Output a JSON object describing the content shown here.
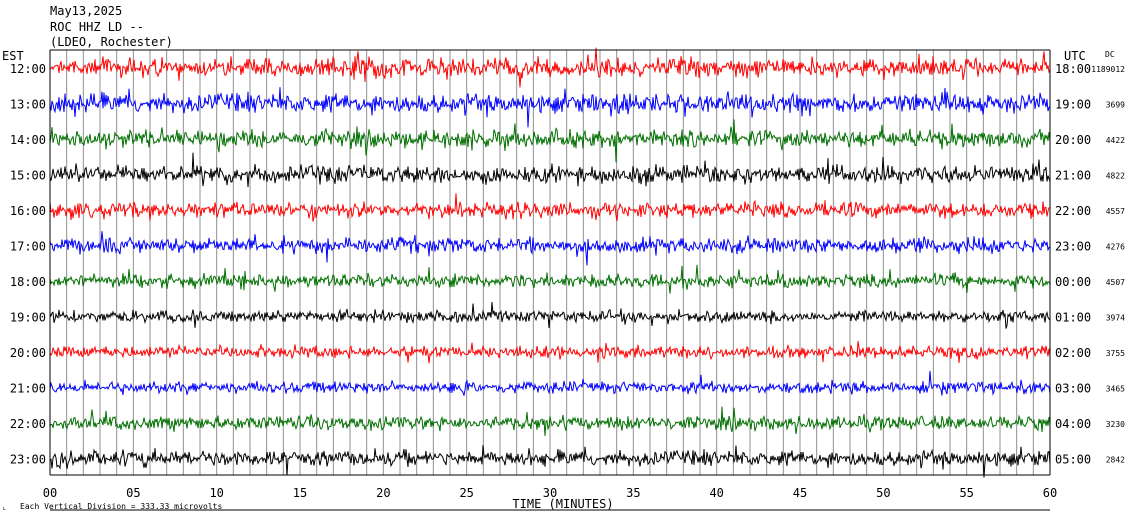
{
  "header": {
    "date": "May13,2025",
    "station": "ROC HHZ LD --",
    "network": "(LDEO, Rochester)"
  },
  "left_timezone": "EST",
  "right_timezone": "UTC",
  "dc_label": "DC",
  "xlabel": "TIME (MINUTES)",
  "scale_note": "Each Vertical Division =  333.33 microvolts",
  "trace_colors": [
    "#ff0000",
    "#0000ff",
    "#007000",
    "#000000"
  ],
  "chart_data": {
    "type": "line",
    "title": "",
    "xlabel": "TIME (MINUTES)",
    "ylabel": "",
    "xlim": [
      0,
      60
    ],
    "x_ticks": [
      "00",
      "05",
      "10",
      "15",
      "20",
      "25",
      "30",
      "35",
      "40",
      "45",
      "50",
      "55",
      "60"
    ],
    "grid": true,
    "rows": [
      {
        "local": "12:00",
        "utc": "18:00",
        "dc": "-1189012",
        "color": "#ff0000",
        "amplitude": 1.0
      },
      {
        "local": "13:00",
        "utc": "19:00",
        "dc": "3699",
        "color": "#0000ff",
        "amplitude": 1.0
      },
      {
        "local": "14:00",
        "utc": "20:00",
        "dc": "4422",
        "color": "#007000",
        "amplitude": 0.9
      },
      {
        "local": "15:00",
        "utc": "21:00",
        "dc": "4822",
        "color": "#000000",
        "amplitude": 0.9
      },
      {
        "local": "16:00",
        "utc": "22:00",
        "dc": "4557",
        "color": "#ff0000",
        "amplitude": 0.8
      },
      {
        "local": "17:00",
        "utc": "23:00",
        "dc": "4276",
        "color": "#0000ff",
        "amplitude": 0.8
      },
      {
        "local": "18:00",
        "utc": "00:00",
        "dc": "4507",
        "color": "#007000",
        "amplitude": 0.7
      },
      {
        "local": "19:00",
        "utc": "01:00",
        "dc": "3974",
        "color": "#000000",
        "amplitude": 0.6
      },
      {
        "local": "20:00",
        "utc": "02:00",
        "dc": "3755",
        "color": "#ff0000",
        "amplitude": 0.6
      },
      {
        "local": "21:00",
        "utc": "03:00",
        "dc": "3465",
        "color": "#0000ff",
        "amplitude": 0.6
      },
      {
        "local": "22:00",
        "utc": "04:00",
        "dc": "3230",
        "color": "#007000",
        "amplitude": 0.7
      },
      {
        "local": "23:00",
        "utc": "05:00",
        "dc": "2842",
        "color": "#000000",
        "amplitude": 0.8
      }
    ]
  }
}
